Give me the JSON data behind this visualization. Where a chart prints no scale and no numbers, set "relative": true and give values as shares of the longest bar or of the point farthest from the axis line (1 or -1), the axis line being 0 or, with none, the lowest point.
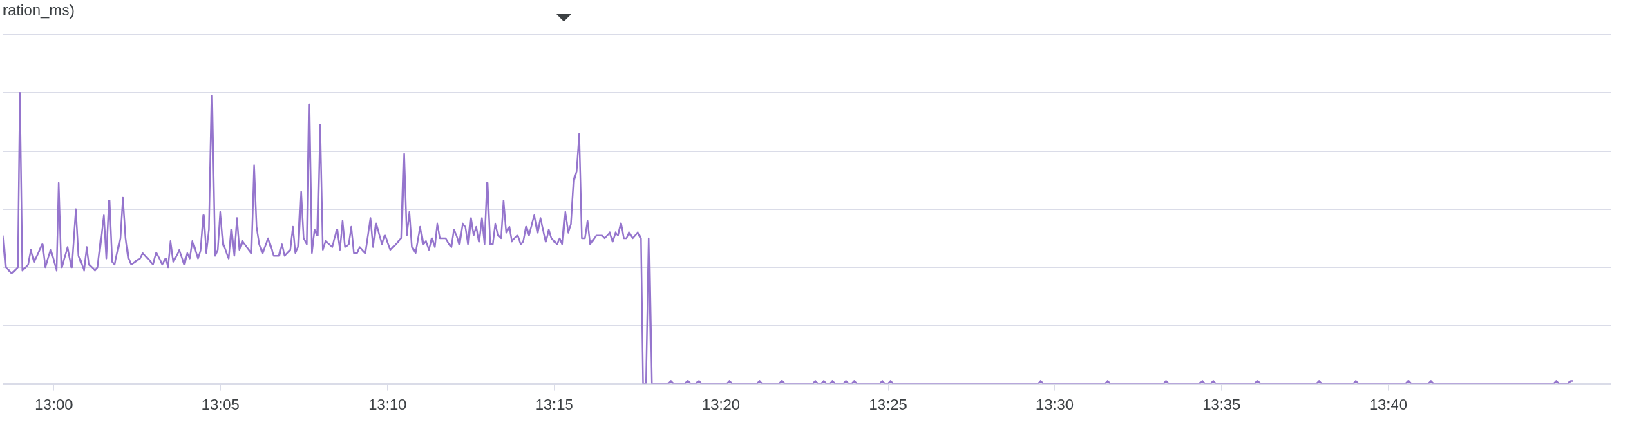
{
  "chart_data": {
    "type": "line",
    "title": "ration_ms)",
    "relative": true,
    "grid": "y",
    "xlim": [
      12.9745,
      13.7777
    ],
    "xticks": [
      {
        "value": 13,
        "label": "13:00"
      },
      {
        "value": 13.0833,
        "label": "13:05"
      },
      {
        "value": 13.1667,
        "label": "13:10"
      },
      {
        "value": 13.25,
        "label": "13:15"
      },
      {
        "value": 13.3333,
        "label": "13:20"
      },
      {
        "value": 13.4167,
        "label": "13:25"
      },
      {
        "value": 13.5,
        "label": "13:30"
      },
      {
        "value": 13.5833,
        "label": "13:35"
      },
      {
        "value": 13.6667,
        "label": "13:40"
      }
    ],
    "x": [
      12.9746,
      12.976,
      12.979,
      12.982,
      12.9831,
      12.9844,
      12.9872,
      12.9886,
      12.9902,
      12.9943,
      12.9957,
      12.9984,
      13.0014,
      13.0025,
      13.0039,
      13.0069,
      13.0089,
      13.011,
      13.0124,
      13.0151,
      13.0165,
      13.0176,
      13.0206,
      13.0219,
      13.025,
      13.0263,
      13.0277,
      13.0291,
      13.0304,
      13.0332,
      13.0345,
      13.0359,
      13.0373,
      13.0386,
      13.043,
      13.0444,
      13.0496,
      13.0512,
      13.0542,
      13.0559,
      13.057,
      13.0583,
      13.0597,
      13.0627,
      13.0652,
      13.0666,
      13.0679,
      13.0693,
      13.072,
      13.0734,
      13.0748,
      13.0761,
      13.0775,
      13.0789,
      13.0805,
      13.0819,
      13.0832,
      13.0846,
      13.0874,
      13.0887,
      13.0901,
      13.0915,
      13.0928,
      13.0942,
      13.0986,
      13.1,
      13.1013,
      13.1027,
      13.1043,
      13.1071,
      13.1098,
      13.1125,
      13.1139,
      13.1153,
      13.118,
      13.1194,
      13.1207,
      13.1221,
      13.1235,
      13.1248,
      13.1265,
      13.1276,
      13.1289,
      13.1303,
      13.1317,
      13.133,
      13.1344,
      13.1358,
      13.1391,
      13.1415,
      13.1429,
      13.1443,
      13.1456,
      13.1473,
      13.1486,
      13.15,
      13.1514,
      13.1528,
      13.1555,
      13.1582,
      13.1596,
      13.161,
      13.164,
      13.1654,
      13.1681,
      13.1736,
      13.1749,
      13.1763,
      13.1777,
      13.179,
      13.1807,
      13.1831,
      13.1845,
      13.1859,
      13.1875,
      13.1889,
      13.1903,
      13.1916,
      13.193,
      13.1957,
      13.1985,
      13.1998,
      13.2012,
      13.2026,
      13.2042,
      13.2056,
      13.207,
      13.2083,
      13.2097,
      13.2111,
      13.2124,
      13.2138,
      13.2152,
      13.2165,
      13.2179,
      13.2193,
      13.2206,
      13.222,
      13.2234,
      13.2247,
      13.2261,
      13.2275,
      13.2288,
      13.2316,
      13.2332,
      13.2346,
      13.236,
      13.2373,
      13.2401,
      13.2417,
      13.2431,
      13.2458,
      13.2472,
      13.2486,
      13.2513,
      13.2527,
      13.254,
      13.2554,
      13.257,
      13.2584,
      13.2598,
      13.2611,
      13.2625,
      13.2639,
      13.2652,
      13.2666,
      13.268,
      13.271,
      13.2737,
      13.2751,
      13.2778,
      13.2792,
      13.2806,
      13.2819,
      13.2833,
      13.2847,
      13.2861,
      13.2874,
      13.2891,
      13.2904,
      13.2918,
      13.2932,
      13.2943,
      13.2959,
      13.2973,
      13.2987,
      13.3068,
      13.3082,
      13.3096,
      13.3153,
      13.3167,
      13.3181,
      13.3208,
      13.3222,
      13.3235,
      13.3361,
      13.3375,
      13.3389,
      13.3512,
      13.3526,
      13.3539,
      13.3624,
      13.3637,
      13.3651,
      13.3791,
      13.3804,
      13.3818,
      13.3832,
      13.3846,
      13.386,
      13.3876,
      13.3889,
      13.3903,
      13.3944,
      13.3958,
      13.3972,
      13.3985,
      13.3999,
      13.4013,
      13.4125,
      13.4139,
      13.4152,
      13.4166,
      13.418,
      13.4193,
      13.4916,
      13.4929,
      13.4943,
      13.525,
      13.5264,
      13.5277,
      13.5543,
      13.5556,
      13.557,
      13.5723,
      13.5737,
      13.575,
      13.5778,
      13.5792,
      13.5805,
      13.5999,
      13.6013,
      13.6028,
      13.6307,
      13.6321,
      13.6335,
      13.6491,
      13.6504,
      13.6518,
      13.6753,
      13.6767,
      13.6781,
      13.6865,
      13.6879,
      13.6893,
      13.7492,
      13.7506,
      13.752,
      13.7564,
      13.7577,
      13.7588
    ],
    "series": [
      {
        "color": "#9575cd",
        "values": [
          0.51,
          0.4,
          0.38,
          0.4,
          1.0,
          0.39,
          0.41,
          0.46,
          0.42,
          0.48,
          0.4,
          0.46,
          0.39,
          0.69,
          0.4,
          0.47,
          0.4,
          0.6,
          0.44,
          0.39,
          0.47,
          0.41,
          0.39,
          0.4,
          0.58,
          0.43,
          0.63,
          0.42,
          0.41,
          0.5,
          0.64,
          0.5,
          0.43,
          0.41,
          0.43,
          0.45,
          0.41,
          0.45,
          0.41,
          0.43,
          0.4,
          0.49,
          0.42,
          0.46,
          0.41,
          0.45,
          0.43,
          0.49,
          0.43,
          0.46,
          0.58,
          0.45,
          0.53,
          0.99,
          0.44,
          0.46,
          0.59,
          0.48,
          0.43,
          0.53,
          0.44,
          0.57,
          0.46,
          0.49,
          0.45,
          0.75,
          0.54,
          0.48,
          0.45,
          0.5,
          0.44,
          0.44,
          0.48,
          0.44,
          0.46,
          0.54,
          0.45,
          0.47,
          0.66,
          0.5,
          0.48,
          0.96,
          0.45,
          0.53,
          0.51,
          0.89,
          0.46,
          0.49,
          0.47,
          0.53,
          0.46,
          0.56,
          0.47,
          0.48,
          0.54,
          0.45,
          0.45,
          0.47,
          0.45,
          0.57,
          0.47,
          0.55,
          0.48,
          0.51,
          0.46,
          0.5,
          0.79,
          0.51,
          0.59,
          0.47,
          0.45,
          0.54,
          0.48,
          0.49,
          0.46,
          0.5,
          0.47,
          0.55,
          0.5,
          0.5,
          0.47,
          0.53,
          0.51,
          0.48,
          0.55,
          0.54,
          0.48,
          0.57,
          0.51,
          0.54,
          0.49,
          0.57,
          0.48,
          0.69,
          0.48,
          0.48,
          0.55,
          0.51,
          0.5,
          0.63,
          0.52,
          0.54,
          0.49,
          0.51,
          0.48,
          0.49,
          0.54,
          0.51,
          0.58,
          0.52,
          0.57,
          0.49,
          0.53,
          0.5,
          0.48,
          0.5,
          0.48,
          0.59,
          0.52,
          0.55,
          0.7,
          0.73,
          0.86,
          0.5,
          0.5,
          0.56,
          0.48,
          0.51,
          0.51,
          0.5,
          0.52,
          0.49,
          0.52,
          0.51,
          0.55,
          0.5,
          0.5,
          0.52,
          0.5,
          0.51,
          0.52,
          0.5,
          0,
          0,
          0.5,
          0,
          0,
          0.01,
          0,
          0,
          0.01,
          0,
          0,
          0.01,
          0,
          0,
          0.01,
          0,
          0,
          0.01,
          0,
          0,
          0.01,
          0,
          0,
          0.01,
          0,
          0,
          0.01,
          0,
          0,
          0.01,
          0,
          0,
          0.01,
          0,
          0,
          0.01,
          0,
          0,
          0.01,
          0,
          0,
          0.01,
          0,
          0,
          0.01,
          0,
          0,
          0.01,
          0,
          0,
          0.01,
          0,
          0,
          0.01,
          0,
          0,
          0.01,
          0,
          0,
          0.01,
          0,
          0,
          0.01,
          0,
          0,
          0.01,
          0,
          0,
          0.01,
          0,
          0,
          0.01,
          0,
          0,
          0.01,
          0,
          0,
          0.01,
          0.01
        ]
      }
    ]
  }
}
